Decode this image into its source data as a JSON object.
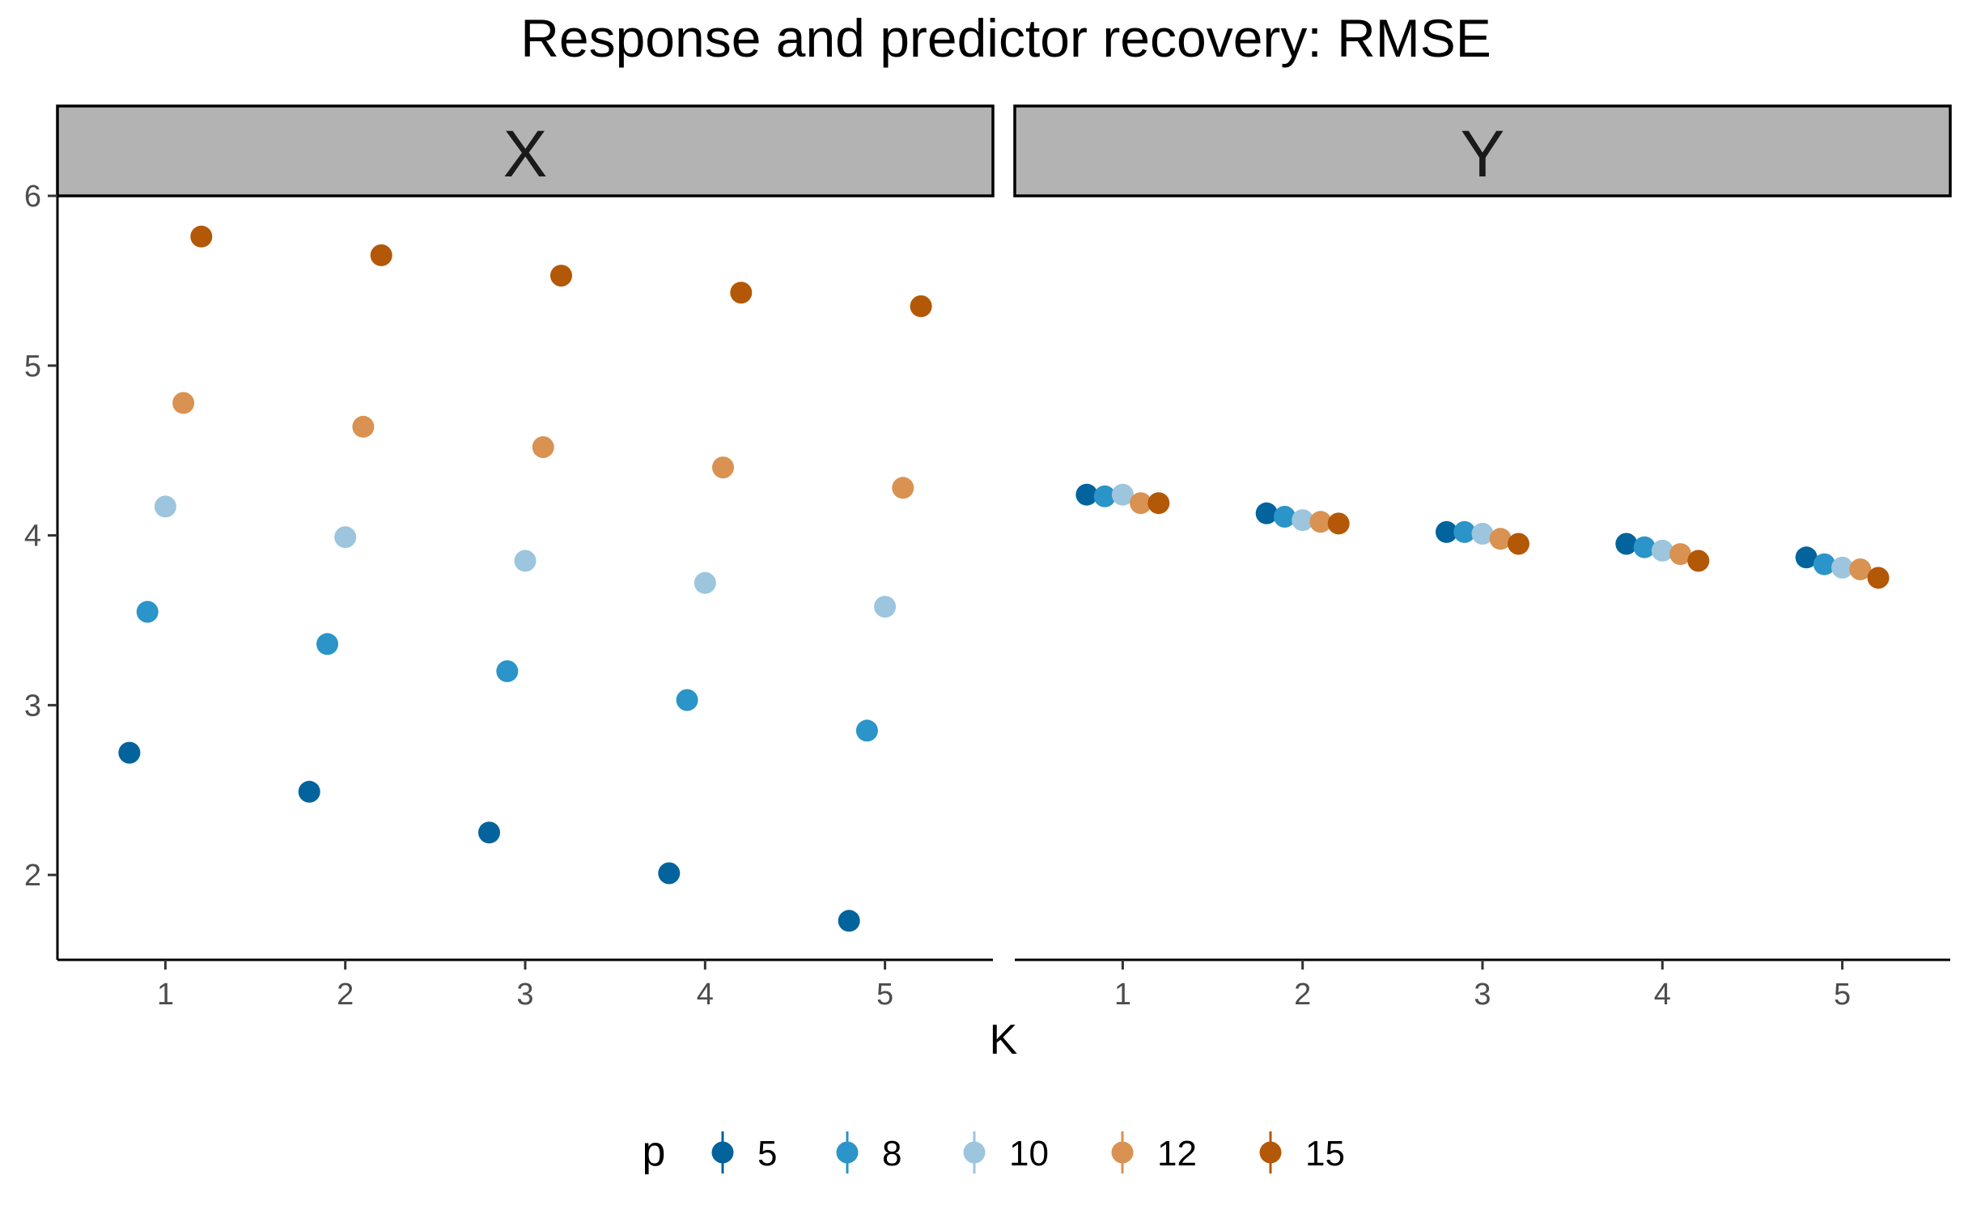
{
  "chart_data": {
    "type": "scatter",
    "title": "Response and predictor recovery: RMSE",
    "xlabel": "K",
    "ylabel": "",
    "facets": [
      "X",
      "Y"
    ],
    "x": [
      1,
      2,
      3,
      4,
      5
    ],
    "x_ticks": [
      "1",
      "2",
      "3",
      "4",
      "5"
    ],
    "y_ticks": [
      "2",
      "3",
      "4",
      "5",
      "6"
    ],
    "ylim": [
      1.5,
      6.0
    ],
    "grid": false,
    "legend_title": "p",
    "legend_position": "bottom",
    "dodge_offsets": [
      -0.2,
      -0.1,
      0.0,
      0.1,
      0.2
    ],
    "series": [
      {
        "name": "5",
        "color": "#03639C",
        "values": {
          "X": [
            2.72,
            2.49,
            2.25,
            2.01,
            1.73
          ],
          "Y": [
            4.24,
            4.13,
            4.02,
            3.95,
            3.87
          ]
        }
      },
      {
        "name": "8",
        "color": "#2B94C8",
        "values": {
          "X": [
            3.55,
            3.36,
            3.2,
            3.03,
            2.85
          ],
          "Y": [
            4.23,
            4.11,
            4.02,
            3.93,
            3.83
          ]
        }
      },
      {
        "name": "10",
        "color": "#9DC5DD",
        "values": {
          "X": [
            4.17,
            3.99,
            3.85,
            3.72,
            3.58
          ],
          "Y": [
            4.24,
            4.09,
            4.01,
            3.91,
            3.81
          ]
        }
      },
      {
        "name": "12",
        "color": "#D99252",
        "values": {
          "X": [
            4.78,
            4.64,
            4.52,
            4.4,
            4.28
          ],
          "Y": [
            4.19,
            4.08,
            3.98,
            3.89,
            3.8
          ]
        }
      },
      {
        "name": "15",
        "color": "#B35806",
        "values": {
          "X": [
            5.76,
            5.65,
            5.53,
            5.43,
            5.35
          ],
          "Y": [
            4.19,
            4.07,
            3.95,
            3.85,
            3.75
          ]
        }
      }
    ]
  }
}
